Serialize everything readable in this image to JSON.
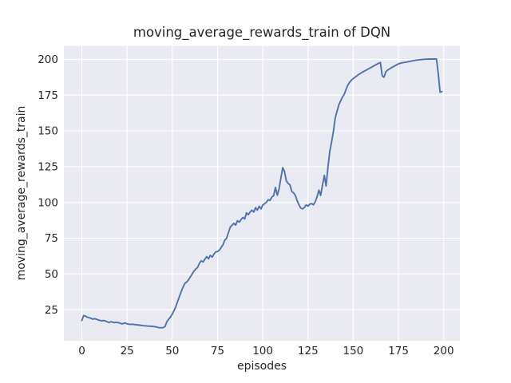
{
  "chart_data": {
    "type": "line",
    "title": "moving_average_rewards_train of DQN",
    "xlabel": "episodes",
    "ylabel": "moving_average_rewards_train",
    "x_ticks": [
      0,
      25,
      50,
      75,
      100,
      125,
      150,
      175,
      200
    ],
    "y_ticks": [
      25,
      50,
      75,
      100,
      125,
      150,
      175,
      200
    ],
    "xlim": [
      -9.95,
      208.95
    ],
    "ylim": [
      3.23,
      209.37
    ],
    "grid": true,
    "legend_position": "none",
    "background_color": "#EAEAF2",
    "grid_color": "#FFFFFF",
    "line_color": "#4C72B0",
    "text_color": "#262626",
    "series": [
      {
        "name": "DQN moving average reward (train)",
        "points": [
          [
            0,
            17.5
          ],
          [
            1,
            20.9
          ],
          [
            2,
            20.5
          ],
          [
            3,
            19.8
          ],
          [
            4,
            19.4
          ],
          [
            5,
            19.0
          ],
          [
            6,
            18.4
          ],
          [
            7,
            18.8
          ],
          [
            9,
            17.9
          ],
          [
            11,
            17.2
          ],
          [
            12,
            17.5
          ],
          [
            14,
            16.6
          ],
          [
            15,
            16.0
          ],
          [
            16,
            16.6
          ],
          [
            18,
            16.0
          ],
          [
            19,
            16.2
          ],
          [
            21,
            15.7
          ],
          [
            22,
            15.1
          ],
          [
            24,
            15.7
          ],
          [
            25,
            15.1
          ],
          [
            27,
            14.7
          ],
          [
            28,
            14.9
          ],
          [
            30,
            14.5
          ],
          [
            32,
            14.2
          ],
          [
            34,
            13.8
          ],
          [
            36,
            13.6
          ],
          [
            39,
            13.4
          ],
          [
            41,
            13.0
          ],
          [
            43,
            12.4
          ],
          [
            45,
            12.5
          ],
          [
            46,
            13.4
          ],
          [
            47,
            16.6
          ],
          [
            48,
            18.4
          ],
          [
            49,
            20.0
          ],
          [
            50,
            22.0
          ],
          [
            51,
            24.5
          ],
          [
            52,
            27.5
          ],
          [
            53,
            31.0
          ],
          [
            54,
            34.5
          ],
          [
            55,
            38.0
          ],
          [
            56,
            41.0
          ],
          [
            57,
            43.5
          ],
          [
            58,
            44.5
          ],
          [
            59,
            46.0
          ],
          [
            60,
            48.0
          ],
          [
            61,
            50.0
          ],
          [
            62,
            52.0
          ],
          [
            63,
            53.5
          ],
          [
            64,
            54.7
          ],
          [
            65,
            57.5
          ],
          [
            66,
            59.3
          ],
          [
            67,
            58.4
          ],
          [
            68,
            60.3
          ],
          [
            69,
            62.1
          ],
          [
            70,
            60.6
          ],
          [
            71,
            63.0
          ],
          [
            72,
            61.8
          ],
          [
            73,
            63.9
          ],
          [
            74,
            65.4
          ],
          [
            75,
            65.7
          ],
          [
            76,
            66.7
          ],
          [
            77,
            68.5
          ],
          [
            78,
            70.4
          ],
          [
            79,
            73.5
          ],
          [
            80,
            75.0
          ],
          [
            81,
            78.9
          ],
          [
            82,
            82.6
          ],
          [
            83,
            84.1
          ],
          [
            84,
            85.4
          ],
          [
            85,
            84.1
          ],
          [
            86,
            87.2
          ],
          [
            87,
            86.3
          ],
          [
            88,
            88.0
          ],
          [
            89,
            89.5
          ],
          [
            90,
            88.5
          ],
          [
            91,
            92.7
          ],
          [
            92,
            91.4
          ],
          [
            93,
            93.3
          ],
          [
            94,
            94.6
          ],
          [
            95,
            93.3
          ],
          [
            96,
            96.4
          ],
          [
            97,
            94.6
          ],
          [
            98,
            97.3
          ],
          [
            99,
            95.5
          ],
          [
            100,
            98.2
          ],
          [
            101,
            99.1
          ],
          [
            102,
            100.1
          ],
          [
            103,
            101.9
          ],
          [
            104,
            101.4
          ],
          [
            105,
            103.8
          ],
          [
            106,
            104.7
          ],
          [
            107,
            110.5
          ],
          [
            108,
            105.0
          ],
          [
            109,
            109.5
          ],
          [
            110,
            117.0
          ],
          [
            111,
            124.3
          ],
          [
            112,
            121.6
          ],
          [
            113,
            115.1
          ],
          [
            114,
            113.2
          ],
          [
            115,
            112.3
          ],
          [
            116,
            107.7
          ],
          [
            117,
            106.7
          ],
          [
            118,
            104.9
          ],
          [
            119,
            101.1
          ],
          [
            120,
            98.3
          ],
          [
            121,
            96.0
          ],
          [
            122,
            95.5
          ],
          [
            123,
            96.5
          ],
          [
            124,
            98.3
          ],
          [
            125,
            97.4
          ],
          [
            126,
            98.8
          ],
          [
            127,
            99.2
          ],
          [
            128,
            98.3
          ],
          [
            129,
            100.5
          ],
          [
            130,
            103.9
          ],
          [
            131,
            108.6
          ],
          [
            132,
            104.9
          ],
          [
            133,
            112.0
          ],
          [
            134,
            118.9
          ],
          [
            135,
            111.5
          ],
          [
            136,
            124.4
          ],
          [
            137,
            135.6
          ],
          [
            138,
            142.0
          ],
          [
            139,
            149.4
          ],
          [
            140,
            158.8
          ],
          [
            141,
            163.5
          ],
          [
            142,
            168.0
          ],
          [
            143,
            171.0
          ],
          [
            144,
            173.5
          ],
          [
            145,
            175.5
          ],
          [
            146,
            179.0
          ],
          [
            147,
            182.0
          ],
          [
            148,
            184.0
          ],
          [
            149,
            185.5
          ],
          [
            150,
            186.6
          ],
          [
            151,
            187.5
          ],
          [
            152,
            188.5
          ],
          [
            153,
            189.4
          ],
          [
            155,
            191.0
          ],
          [
            158,
            193.1
          ],
          [
            160,
            194.5
          ],
          [
            162,
            195.9
          ],
          [
            164,
            197.2
          ],
          [
            165,
            197.8
          ],
          [
            166,
            188.5
          ],
          [
            167,
            187.5
          ],
          [
            168,
            191.3
          ],
          [
            169,
            192.5
          ],
          [
            171,
            194.1
          ],
          [
            173,
            195.5
          ],
          [
            175,
            196.9
          ],
          [
            177,
            197.6
          ],
          [
            180,
            198.2
          ],
          [
            182,
            198.8
          ],
          [
            184,
            199.3
          ],
          [
            187,
            199.8
          ],
          [
            190,
            200.1
          ],
          [
            193,
            200.2
          ],
          [
            196,
            200.3
          ],
          [
            197,
            190.0
          ],
          [
            198,
            177.0
          ],
          [
            199,
            177.5
          ]
        ]
      }
    ]
  }
}
